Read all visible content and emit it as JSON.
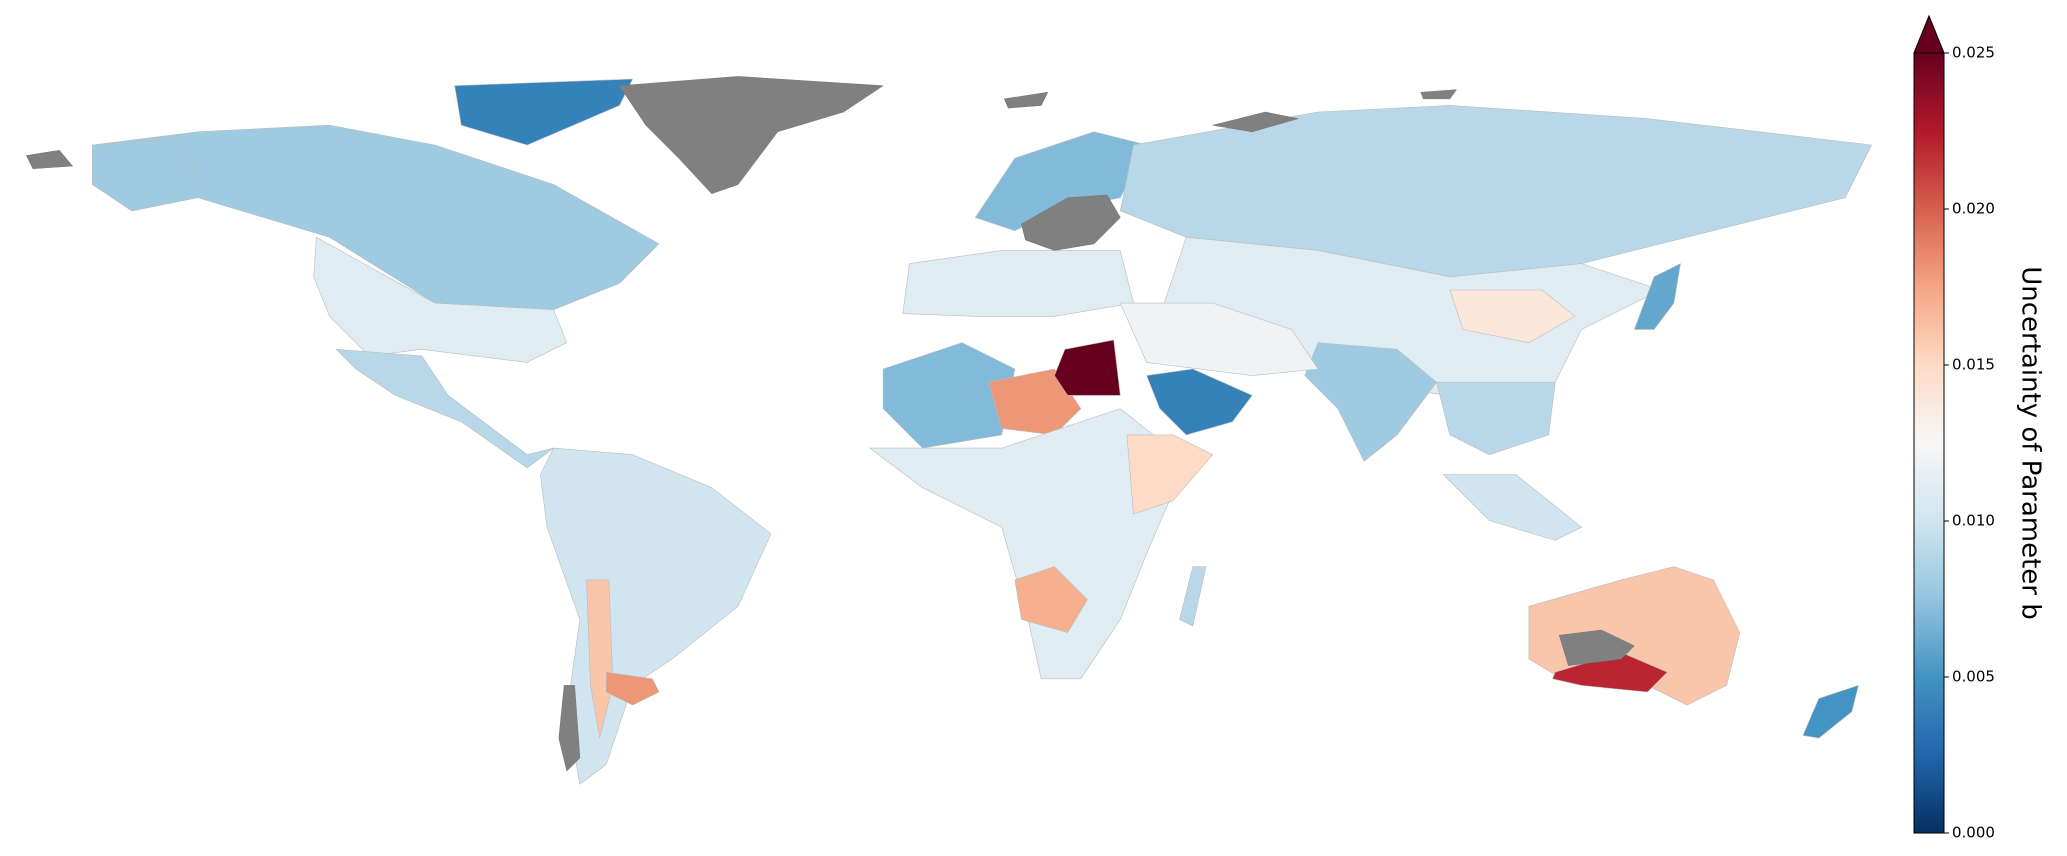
{
  "chart_data": {
    "type": "choropleth",
    "colorbar_label": "Uncertainty of Parameter b",
    "colormap": "RdBu_r",
    "clim": [
      0,
      0.025
    ],
    "extend": "max",
    "no_data_color": "#808080",
    "ticks": [
      {
        "value": 0,
        "label": "0.000"
      },
      {
        "value": 0.005,
        "label": "0.005"
      },
      {
        "value": 0.01,
        "label": "0.010"
      },
      {
        "value": 0.015,
        "label": "0.015"
      },
      {
        "value": 0.02,
        "label": "0.020"
      },
      {
        "value": 0.025,
        "label": "0.025"
      }
    ],
    "values": [
      0.008,
      0.011,
      0.004,
      0.009,
      0.01,
      0.016,
      0.018,
      0.011,
      0.007,
      0.009,
      0.011,
      0.014,
      0.008,
      0.009,
      0.007,
      0.018,
      0.03,
      0.011,
      0.015,
      0.017,
      0.004,
      0.012,
      0.016,
      0.022,
      0.01,
      0.006,
      0.005,
      0.008,
      0.009
    ]
  }
}
